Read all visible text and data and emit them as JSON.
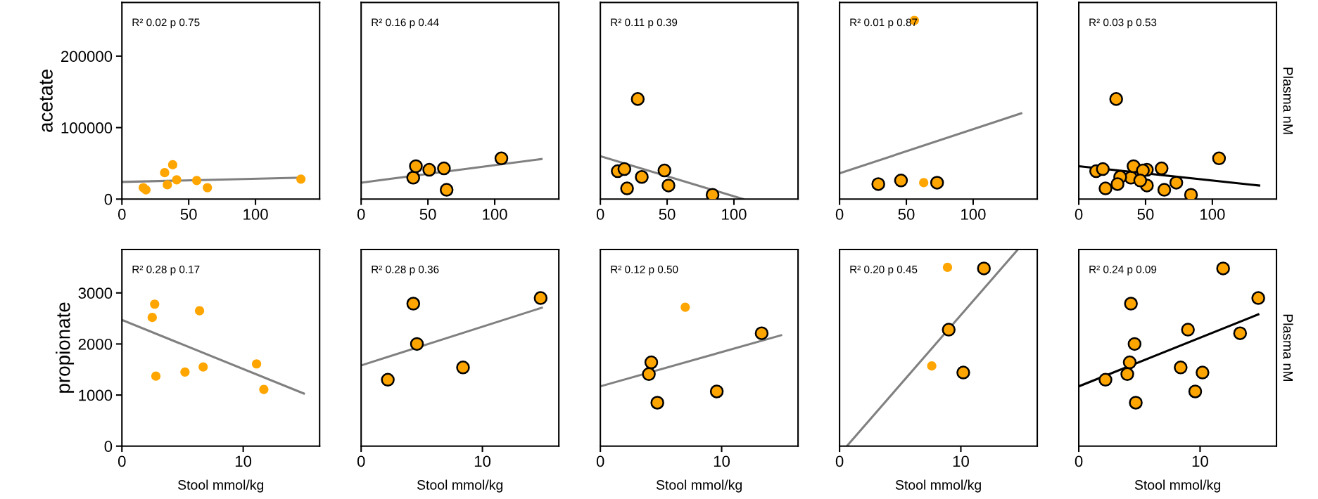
{
  "chart_data": [
    {
      "type": "scatter",
      "ylabel": "acetate",
      "xlim": [
        0,
        148
      ],
      "xticks": [
        0,
        50,
        100
      ],
      "ylim": [
        0,
        275000
      ],
      "yticks": [
        0,
        100000,
        200000
      ],
      "annotations": [
        "R² 0.02 p 0.75"
      ],
      "series": [
        {
          "color": "#ffa500",
          "x": [
            16,
            18,
            32,
            38,
            34,
            41,
            56,
            64,
            134
          ],
          "values": [
            16000,
            13000,
            37000,
            48000,
            20000,
            27000,
            26000,
            16000,
            28000
          ]
        },
        {
          "type": "line",
          "color": "#808080",
          "x": [
            0,
            134
          ],
          "values": [
            24000,
            30000
          ]
        }
      ]
    },
    {
      "type": "scatter",
      "xlim": [
        0,
        148
      ],
      "xticks": [
        0,
        50,
        100
      ],
      "ylim": [
        0,
        275000
      ],
      "yticks": [
        0,
        100000,
        200000
      ],
      "tick_labels": "x",
      "annotations": [
        "R² 0.16 p 0.44"
      ],
      "series": [
        {
          "color": "#ffa500",
          "marker": "circle",
          "x": [
            39,
            41,
            51,
            62,
            64,
            105
          ],
          "values": [
            30000,
            46000,
            41000,
            43000,
            13000,
            57000
          ]
        },
        {
          "type": "line",
          "color": "#808080",
          "x": [
            0,
            135
          ],
          "values": [
            23000,
            56000
          ]
        }
      ]
    },
    {
      "type": "scatter",
      "xlim": [
        0,
        148
      ],
      "xticks": [
        0,
        50,
        100
      ],
      "ylim": [
        0,
        275000
      ],
      "yticks": [
        0,
        100000,
        200000
      ],
      "tick_labels": "x",
      "annotations": [
        "R² 0.11 p 0.39"
      ],
      "series": [
        {
          "color": "#ffa500",
          "marker": "circle",
          "x": [
            13,
            18,
            28,
            20,
            31,
            48,
            51,
            84
          ],
          "values": [
            39000,
            42000,
            140000,
            15000,
            31000,
            40000,
            19000,
            6000
          ]
        },
        {
          "type": "line",
          "color": "#808080",
          "x": [
            0,
            107
          ],
          "values": [
            60000,
            0
          ]
        }
      ]
    },
    {
      "type": "scatter",
      "xlim": [
        0,
        148
      ],
      "xticks": [
        0,
        50,
        100
      ],
      "ylim": [
        0,
        275000
      ],
      "yticks": [
        0,
        100000,
        200000
      ],
      "tick_labels": "x",
      "annotations": [
        "R² 0.01 p 0.87"
      ],
      "series": [
        {
          "color": "#ffa500",
          "marker": "circle",
          "x": [
            29,
            46,
            73
          ],
          "values": [
            21000,
            26000,
            23000
          ]
        },
        {
          "color": "#ffa500",
          "x": [
            63,
            56
          ],
          "values": [
            23000,
            250000
          ]
        },
        {
          "type": "line",
          "color": "#808080",
          "x": [
            0,
            136
          ],
          "values": [
            36000,
            120000
          ]
        }
      ]
    },
    {
      "type": "scatter",
      "y2label": "Plasma nM",
      "xlim": [
        0,
        148
      ],
      "xticks": [
        0,
        50,
        100
      ],
      "ylim": [
        0,
        275000
      ],
      "yticks": [
        0,
        100000,
        200000
      ],
      "tick_labels": "x",
      "annotations": [
        "R² 0.03 p 0.53"
      ],
      "series": [
        {
          "color": "#ffa500",
          "marker": "circle",
          "x": [
            39,
            41,
            51,
            62,
            64,
            105,
            13,
            18,
            28,
            20,
            31,
            48,
            51,
            84,
            29,
            46,
            73
          ],
          "values": [
            30000,
            46000,
            41000,
            43000,
            13000,
            57000,
            39000,
            42000,
            140000,
            15000,
            31000,
            40000,
            19000,
            6000,
            21000,
            26000,
            23000
          ]
        },
        {
          "type": "line",
          "color": "#000000",
          "x": [
            0,
            135
          ],
          "values": [
            46000,
            19000
          ]
        }
      ]
    },
    {
      "type": "scatter",
      "ylabel": "propionate",
      "xlabel": "Stool mmol/kg",
      "xlim": [
        0,
        16.3
      ],
      "xticks": [
        0,
        10
      ],
      "ylim": [
        0,
        3850
      ],
      "yticks": [
        0,
        1000,
        2000,
        3000
      ],
      "annotations": [
        "R² 0.28 p 0.17"
      ],
      "series": [
        {
          "color": "#ffa500",
          "x": [
            2.5,
            2.7,
            6.4,
            2.8,
            5.2,
            6.7,
            11.1,
            11.7
          ],
          "values": [
            2520,
            2780,
            2650,
            1370,
            1450,
            1550,
            1610,
            1110
          ]
        },
        {
          "type": "line",
          "color": "#808080",
          "x": [
            0,
            15
          ],
          "values": [
            2470,
            1030
          ]
        }
      ]
    },
    {
      "type": "scatter",
      "xlabel": "Stool mmol/kg",
      "xlim": [
        0,
        16.3
      ],
      "xticks": [
        0,
        10
      ],
      "ylim": [
        0,
        3850
      ],
      "yticks": [
        0,
        1000,
        2000,
        3000
      ],
      "tick_labels": "x",
      "annotations": [
        "R² 0.28 p 0.36"
      ],
      "series": [
        {
          "color": "#ffa500",
          "marker": "circle",
          "x": [
            2.2,
            4.3,
            4.6,
            8.4,
            14.8
          ],
          "values": [
            1300,
            2790,
            2000,
            1540,
            2900
          ]
        },
        {
          "type": "line",
          "color": "#808080",
          "x": [
            0,
            14.9
          ],
          "values": [
            1580,
            2710
          ]
        }
      ]
    },
    {
      "type": "scatter",
      "xlabel": "Stool mmol/kg",
      "xlim": [
        0,
        16.3
      ],
      "xticks": [
        0,
        10
      ],
      "ylim": [
        0,
        3850
      ],
      "yticks": [
        0,
        1000,
        2000,
        3000
      ],
      "tick_labels": "x",
      "annotations": [
        "R² 0.12 p 0.50"
      ],
      "series": [
        {
          "color": "#ffa500",
          "marker": "circle",
          "x": [
            4.2,
            4.0,
            4.7,
            9.6,
            13.3
          ],
          "values": [
            1640,
            1410,
            850,
            1070,
            2210
          ]
        },
        {
          "color": "#ffa500",
          "x": [
            7.0
          ],
          "values": [
            2720
          ]
        },
        {
          "type": "line",
          "color": "#808080",
          "x": [
            0,
            14.9
          ],
          "values": [
            1170,
            2170
          ]
        }
      ]
    },
    {
      "type": "scatter",
      "xlabel": "Stool mmol/kg",
      "xlim": [
        0,
        16.3
      ],
      "xticks": [
        0,
        10
      ],
      "ylim": [
        0,
        3850
      ],
      "yticks": [
        0,
        1000,
        2000,
        3000
      ],
      "tick_labels": "x",
      "annotations": [
        "R² 0.20 p 0.45"
      ],
      "series": [
        {
          "color": "#ffa500",
          "marker": "circle",
          "x": [
            9.0,
            10.2,
            11.9
          ],
          "values": [
            2280,
            1440,
            3480
          ]
        },
        {
          "color": "#ffa500",
          "x": [
            8.9,
            7.6
          ],
          "values": [
            3500,
            1570
          ]
        },
        {
          "type": "line",
          "color": "#808080",
          "x": [
            0.6,
            14.7
          ],
          "values": [
            0,
            3850
          ]
        }
      ]
    },
    {
      "type": "scatter",
      "xlabel": "Stool mmol/kg",
      "y2label": "Plasma nM",
      "xlim": [
        0,
        16.3
      ],
      "xticks": [
        0,
        10
      ],
      "ylim": [
        0,
        3850
      ],
      "yticks": [
        0,
        1000,
        2000,
        3000
      ],
      "tick_labels": "x",
      "annotations": [
        "R² 0.24 p 0.09"
      ],
      "series": [
        {
          "color": "#ffa500",
          "marker": "circle",
          "x": [
            2.2,
            4.3,
            4.6,
            8.4,
            14.8,
            4.2,
            4.0,
            4.7,
            9.6,
            13.3,
            9.0,
            10.2,
            11.9
          ],
          "values": [
            1300,
            2790,
            2000,
            1540,
            2900,
            1640,
            1410,
            850,
            1070,
            2210,
            2280,
            1440,
            3480
          ]
        },
        {
          "type": "line",
          "color": "#000000",
          "x": [
            0,
            14.8
          ],
          "values": [
            1170,
            2580
          ]
        }
      ]
    }
  ]
}
